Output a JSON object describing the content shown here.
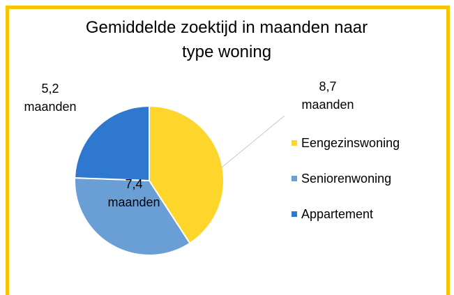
{
  "chart_data": {
    "type": "pie",
    "title": "Gemiddelde zoektijd in maanden naar type woning",
    "categories": [
      "Eengezinswoning",
      "Seniorenwoning",
      "Appartement"
    ],
    "values": [
      8.7,
      7.4,
      5.2
    ],
    "value_labels": [
      "8,7 maanden",
      "7,4 maanden",
      "5,2 maanden"
    ],
    "colors": [
      "#fdd52b",
      "#6a9fd6",
      "#2f78cf"
    ],
    "legend": "right"
  }
}
